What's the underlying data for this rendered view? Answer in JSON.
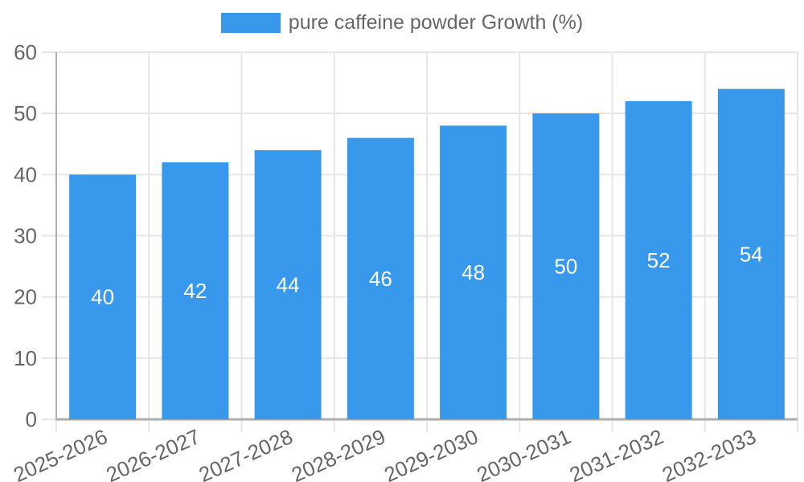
{
  "legend": {
    "label": "pure caffeine powder Growth (%)"
  },
  "colors": {
    "bar": "#3899ec",
    "bar_label": "#ffffff",
    "grid": "#e6e6e6",
    "axis": "#aeaeae",
    "text": "#666666",
    "background": "#ffffff"
  },
  "chart_data": {
    "type": "bar",
    "title": "",
    "series_name": "pure caffeine powder Growth (%)",
    "categories": [
      "2025-2026",
      "2026-2027",
      "2027-2028",
      "2028-2029",
      "2029-2030",
      "2030-2031",
      "2031-2032",
      "2032-2033"
    ],
    "values": [
      40,
      42,
      44,
      46,
      48,
      50,
      52,
      54
    ],
    "bar_value_labels": [
      "40",
      "42",
      "44",
      "46",
      "48",
      "50",
      "52",
      "54"
    ],
    "xlabel": "",
    "ylabel": "",
    "ylim": [
      0,
      60
    ],
    "yticks": [
      0,
      10,
      20,
      30,
      40,
      50,
      60
    ],
    "ytick_labels": [
      "0",
      "10",
      "20",
      "30",
      "40",
      "50",
      "60"
    ],
    "grid": true,
    "legend_position": "top",
    "x_tick_rotation_deg": 24
  }
}
